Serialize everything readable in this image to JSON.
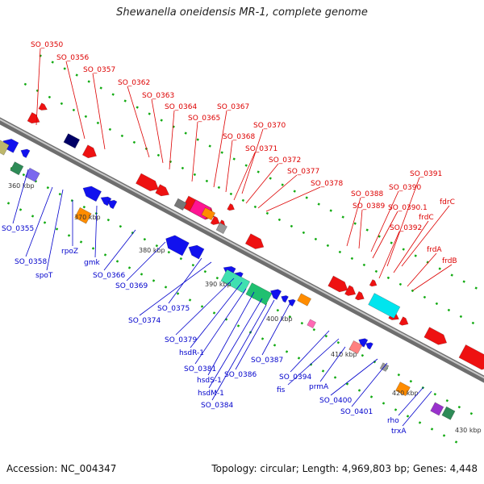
{
  "title": "Shewanella oneidensis MR-1, complete genome",
  "footer": {
    "accession": "Accession: NC_004347",
    "summary": "Topology: circular; Length: 4,969,803 bp; Genes: 4,448"
  },
  "scale_labels": [
    "360 kbp",
    "370 kbp",
    "380 kbp",
    "390 kbp",
    "400 kbp",
    "410 kbp",
    "420 kbp",
    "430 kbp"
  ],
  "forward_labels": [
    "SO_0350",
    "SO_0356",
    "SO_0357",
    "SO_0362",
    "SO_0363",
    "SO_0364",
    "SO_0367",
    "SO_0365",
    "SO_0370",
    "SO_0368",
    "SO_0371",
    "SO_0372",
    "SO_0377",
    "SO_0378",
    "SO_0388",
    "SO_0391",
    "SO_0389",
    "SO_0390",
    "SO_0390.1",
    "fdrC",
    "frdC",
    "SO_0392",
    "frdA",
    "frdB"
  ],
  "reverse_labels": [
    "SO_0355",
    "SO_0358",
    "rpoZ",
    "spoT",
    "gmk",
    "SO_0366",
    "SO_0369",
    "SO_0375",
    "SO_0374",
    "SO_0379",
    "hsdR-1",
    "SO_0381",
    "hsdS-1",
    "SO_0386",
    "hsdM-1",
    "SO_0387",
    "SO_0384",
    "SO_0394",
    "fis",
    "prmA",
    "SO_0400",
    "SO_0401",
    "rho",
    "trxA"
  ],
  "colors": {
    "forward_label": "#dd0000",
    "reverse_label": "#0000cc",
    "forward_gene": "#ee1111",
    "reverse_gene": "#1111ee",
    "backbone": "#8a8a8a",
    "tick": "#11aa11"
  }
}
